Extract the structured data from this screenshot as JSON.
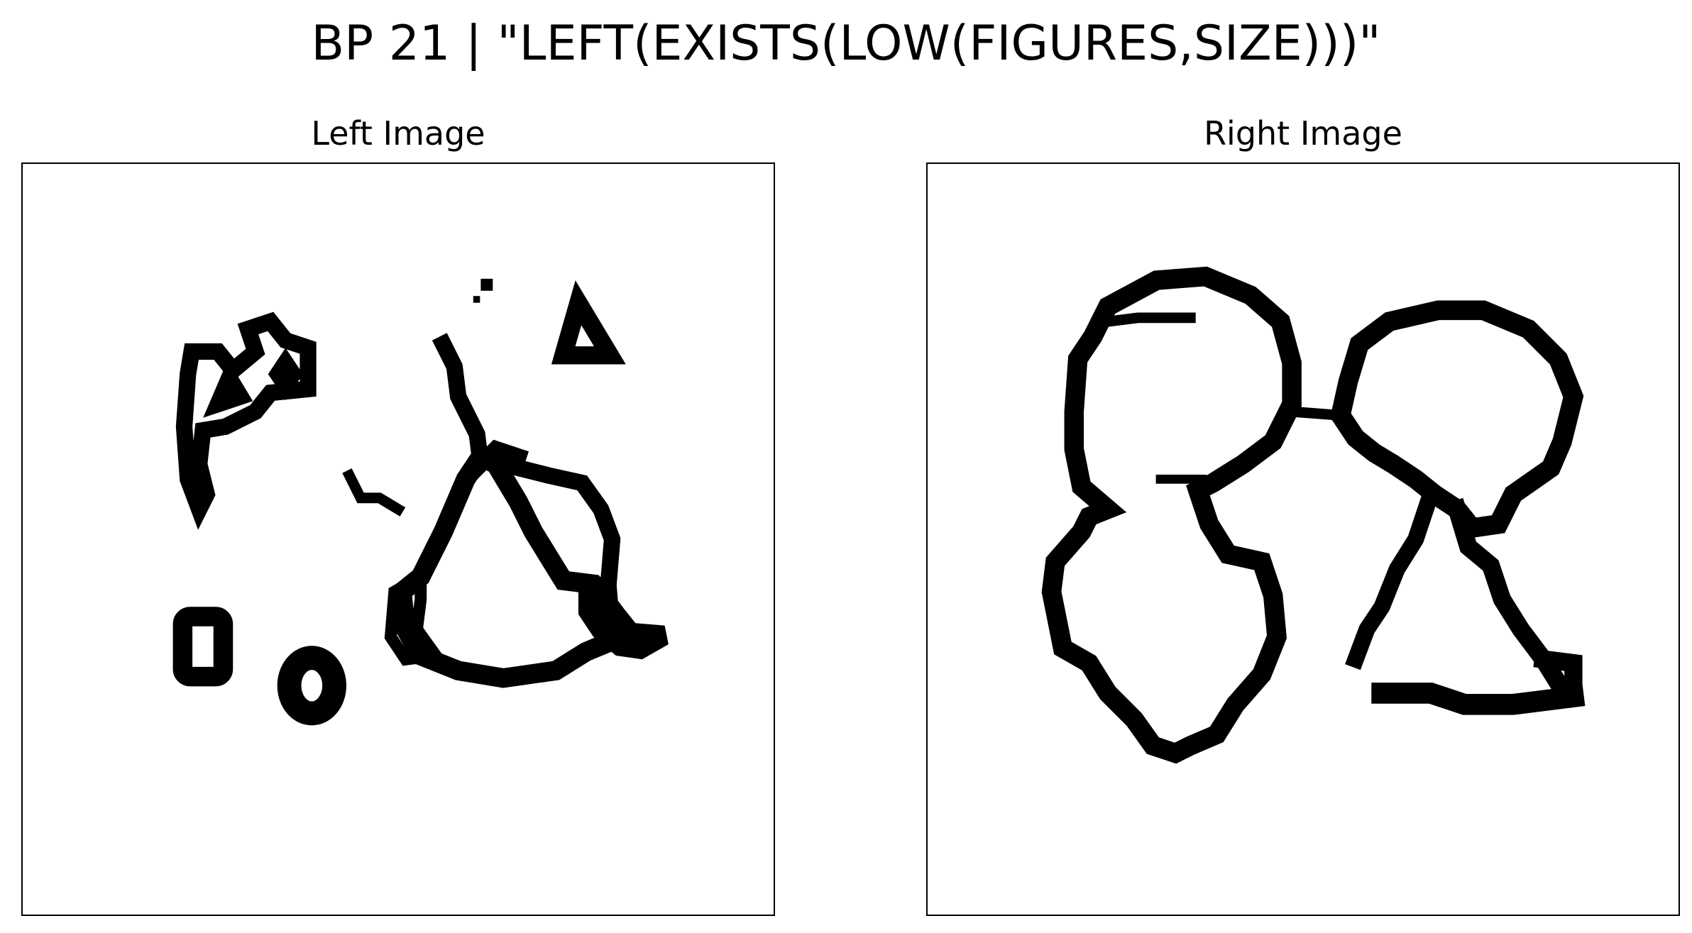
{
  "title": "BP 21 | \"LEFT(EXISTS(LOW(FIGURES,SIZE)))\"",
  "panels": {
    "left": {
      "title": "Left Image"
    },
    "right": {
      "title": "Right Image"
    }
  },
  "colors": {
    "ink": "#000000",
    "background": "#ffffff"
  }
}
